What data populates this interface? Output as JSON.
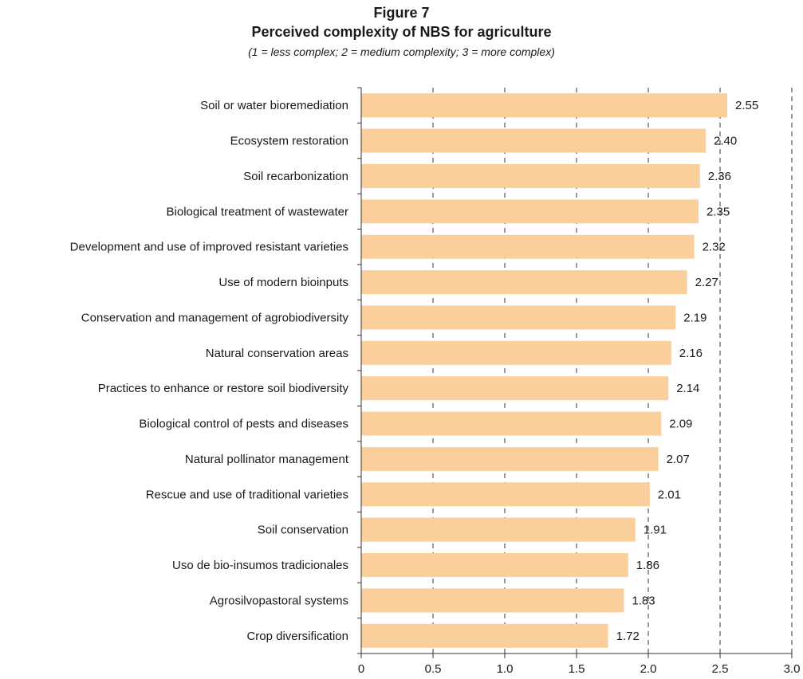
{
  "figure_label": "Figure 7",
  "chart_data": {
    "type": "bar",
    "orientation": "horizontal",
    "title": "Perceived complexity of NBS for agriculture",
    "subtitle": "(1 = less complex; 2 = medium complexity; 3 = more complex)",
    "categories": [
      "Soil or water bioremediation",
      "Ecosystem restoration",
      "Soil recarbonization",
      "Biological treatment of wastewater",
      "Development and use of improved resistant varieties",
      "Use of modern bioinputs",
      "Conservation and management of agrobiodiversity",
      "Natural conservation areas",
      "Practices to enhance or restore soil biodiversity",
      "Biological control of pests and diseases",
      "Natural pollinator management",
      "Rescue and use of traditional varieties",
      "Soil conservation",
      "Uso de bio-insumos tradicionales",
      "Agrosilvopastoral systems",
      "Crop diversification"
    ],
    "values": [
      2.55,
      2.4,
      2.36,
      2.35,
      2.32,
      2.27,
      2.19,
      2.16,
      2.14,
      2.09,
      2.07,
      2.01,
      1.91,
      1.86,
      1.83,
      1.72
    ],
    "value_labels": [
      "2.55",
      "2.40",
      "2.36",
      "2.35",
      "2.32",
      "2.27",
      "2.19",
      "2.16",
      "2.14",
      "2.09",
      "2.07",
      "2.01",
      "1.91",
      "1.86",
      "1.83",
      "1.72"
    ],
    "xlim": [
      0,
      3.0
    ],
    "xticks": [
      0,
      0.5,
      1.0,
      1.5,
      2.0,
      2.5,
      3.0
    ],
    "xtick_labels": [
      "0",
      "0.5",
      "1.0",
      "1.5",
      "2.0",
      "2.5",
      "3.0"
    ],
    "grid": "vertical dashed",
    "bar_color": "#fbcf9c"
  }
}
